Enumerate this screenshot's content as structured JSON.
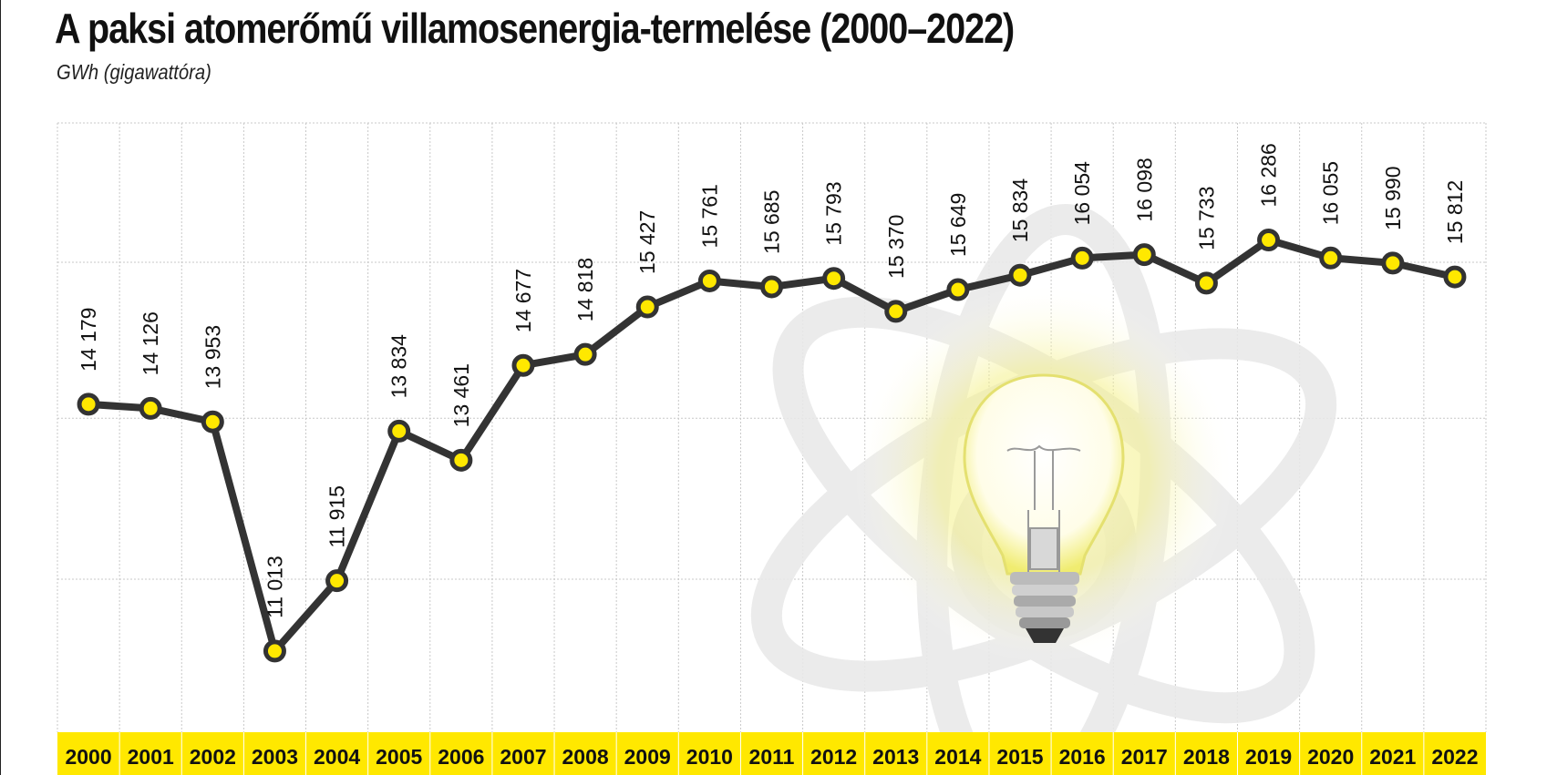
{
  "title": "A paksi atomerőmű villamosenergia-termelése (2000–2022)",
  "subtitle": "GWh (gigawattóra)",
  "colors": {
    "line": "#333333",
    "marker": "#ffe800",
    "band": "#ffe800",
    "grid": "#c8c8c8"
  },
  "chart_data": {
    "type": "line",
    "title": "A paksi atomerőmű villamosenergia-termelése (2000–2022)",
    "ylabel": "GWh (gigawattóra)",
    "xlabel": "",
    "categories": [
      "2000",
      "2001",
      "2002",
      "2003",
      "2004",
      "2005",
      "2006",
      "2007",
      "2008",
      "2009",
      "2010",
      "2011",
      "2012",
      "2013",
      "2014",
      "2015",
      "2016",
      "2017",
      "2018",
      "2019",
      "2020",
      "2021",
      "2022"
    ],
    "values": [
      14179,
      14126,
      13953,
      11013,
      11915,
      13834,
      13461,
      14677,
      14818,
      15427,
      15761,
      15685,
      15793,
      15370,
      15649,
      15834,
      16054,
      16098,
      15733,
      16286,
      16055,
      15990,
      15812
    ],
    "value_labels": [
      "14 179",
      "14 126",
      "13 953",
      "11 013",
      "11 915",
      "13 834",
      "13 461",
      "14 677",
      "14 818",
      "15 427",
      "15 761",
      "15 685",
      "15 793",
      "15 370",
      "15 649",
      "15 834",
      "16 054",
      "16 098",
      "15 733",
      "16 286",
      "16 055",
      "15 990",
      "15 812"
    ],
    "ylim": [
      10000,
      17500
    ],
    "grid": true,
    "legend": "none"
  }
}
